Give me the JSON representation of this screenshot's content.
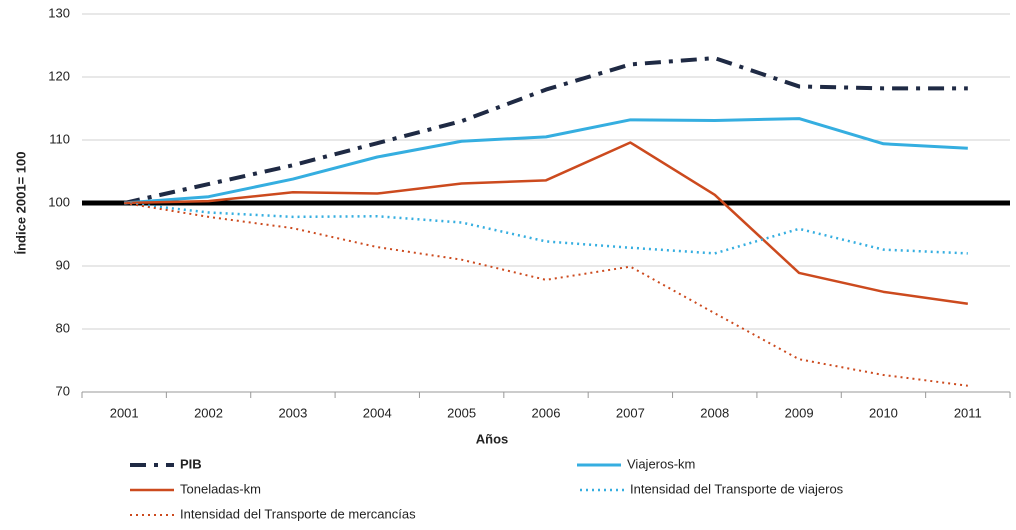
{
  "chart_data": {
    "type": "line",
    "categories": [
      "2001",
      "2002",
      "2003",
      "2004",
      "2005",
      "2006",
      "2007",
      "2008",
      "2009",
      "2010",
      "2011"
    ],
    "series": [
      {
        "name": "PIB",
        "color": "#1f2a44",
        "style": "dashdot",
        "width": 4,
        "values": [
          100,
          103,
          106,
          109.5,
          113,
          118,
          122,
          123,
          118.5,
          118.2,
          118.2
        ]
      },
      {
        "name": "Viajeros-km",
        "color": "#35aee0",
        "style": "solid",
        "width": 3,
        "values": [
          100,
          101,
          103.8,
          107.3,
          109.8,
          110.5,
          113.2,
          113.1,
          113.4,
          109.4,
          108.7
        ]
      },
      {
        "name": "Toneladas-km",
        "color": "#cc4a1e",
        "style": "solid",
        "width": 2.5,
        "values": [
          100,
          100.3,
          101.7,
          101.5,
          103.1,
          103.6,
          109.6,
          101.3,
          88.9,
          85.9,
          84
        ]
      },
      {
        "name": "Intensidad del Transporte de viajeros",
        "color": "#35aee0",
        "style": "dotted",
        "width": 2.5,
        "values": [
          100,
          98.5,
          97.8,
          97.9,
          96.9,
          93.9,
          92.9,
          92,
          95.9,
          92.6,
          92
        ]
      },
      {
        "name": "Intensidad del Transporte de mercancías",
        "color": "#cc4a1e",
        "style": "dotted",
        "width": 2,
        "values": [
          100,
          97.8,
          96,
          93,
          91,
          87.8,
          89.9,
          82.5,
          75.2,
          72.7,
          71
        ]
      }
    ],
    "ylim": [
      70,
      130
    ],
    "yticks": [
      70,
      80,
      90,
      100,
      110,
      120,
      130
    ],
    "grid": true,
    "reference_line": 100,
    "ylabel": "Índice 2001= 100",
    "xlabel": "Años",
    "legend": "bottom"
  }
}
